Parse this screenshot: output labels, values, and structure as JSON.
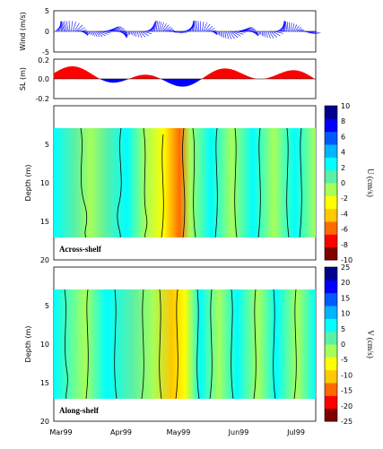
{
  "chart_data": [
    {
      "type": "line",
      "title": "",
      "ylabel": "Wind (m/s)",
      "ylim": [
        -5,
        5
      ],
      "yticks": [
        "5",
        "0",
        "-5"
      ],
      "description_x": "vector stick plot, Mar99–Jul99"
    },
    {
      "type": "area",
      "title": "",
      "ylabel": "SL (m)",
      "ylim": [
        -0.2,
        0.2
      ],
      "yticks": [
        "0.2",
        "0.0",
        "-0.2"
      ],
      "colors": {
        "positive": "#ff0000",
        "negative": "#0000ff"
      }
    },
    {
      "type": "heatmap",
      "title": "",
      "panel_label": "Across-shelf",
      "ylabel": "Depth (m)",
      "yticks": [
        "5",
        "10",
        "15",
        "20"
      ],
      "colorbar_label": "U (cm/s)",
      "colorbar_ticks": [
        "10",
        "8",
        "6",
        "4",
        "2",
        "0",
        "-2",
        "-4",
        "-6",
        "-8",
        "-10"
      ],
      "colors": [
        "#7f0000",
        "#ff0000",
        "#ff6a00",
        "#ffc800",
        "#ffff00",
        "#a6ff59",
        "#5af0a6",
        "#00ffff",
        "#00b4ff",
        "#005aff",
        "#0000ff",
        "#00008f"
      ]
    },
    {
      "type": "heatmap",
      "title": "",
      "panel_label": "Along-shelf",
      "ylabel": "Depth (m)",
      "yticks": [
        "5",
        "10",
        "15",
        "20"
      ],
      "colorbar_label": "V (cm/s)",
      "colorbar_ticks": [
        "25",
        "20",
        "15",
        "10",
        "5",
        "0",
        "-5",
        "-10",
        "-15",
        "-20",
        "-25"
      ],
      "xticks": [
        "Mar99",
        "Apr99",
        "May99",
        "Jun99",
        "Jul99"
      ],
      "colors": [
        "#7f0000",
        "#ff0000",
        "#ff6a00",
        "#ffc800",
        "#ffff00",
        "#a6ff59",
        "#5af0a6",
        "#00ffff",
        "#00b4ff",
        "#005aff",
        "#0000ff",
        "#00008f"
      ]
    }
  ]
}
